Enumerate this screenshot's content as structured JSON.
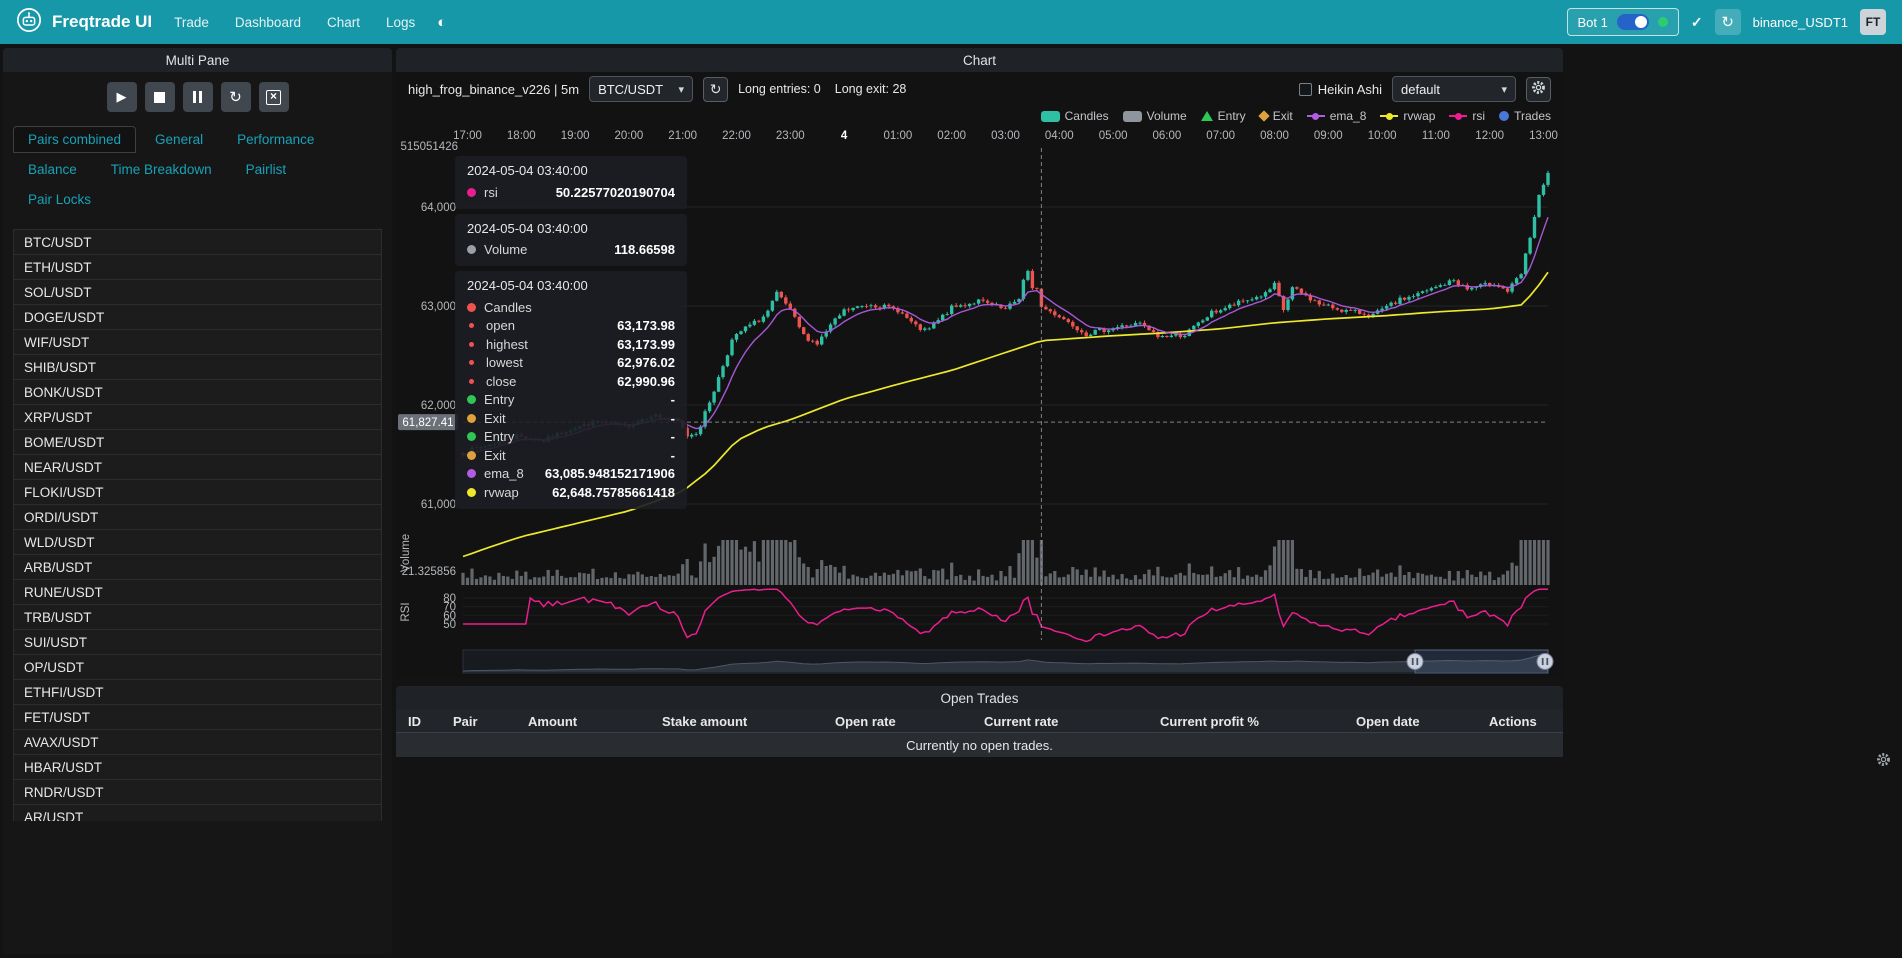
{
  "colors": {
    "navbar": "#1798a8",
    "accent": "#17a2b8",
    "candle_up": "#2fbfa4",
    "candle_down": "#ef5350",
    "volume": "#9aa0a6",
    "entry": "#2fc654",
    "exit": "#dfa23b",
    "ema_8": "#b05ce3",
    "rvwap": "#eee82c",
    "rsi": "#ea1e8e",
    "trades": "#4a78d8"
  },
  "navbar": {
    "brand": "Freqtrade UI",
    "links": [
      "Trade",
      "Dashboard",
      "Chart",
      "Logs"
    ],
    "theme_icon": "◐",
    "bot_name": "Bot 1",
    "check_icon": "✓",
    "reload_icon": "↻",
    "exchange_label": "binance_USDT1",
    "avatar_label": "FT"
  },
  "multi_pane": {
    "title": "Multi Pane",
    "control_icons": {
      "play": "▶",
      "reload": "↻",
      "cancel": "×"
    },
    "tabs": [
      {
        "label": "Pairs combined",
        "active": true
      },
      {
        "label": "General",
        "active": false
      },
      {
        "label": "Performance",
        "active": false
      },
      {
        "label": "Balance",
        "active": false
      },
      {
        "label": "Time Breakdown",
        "active": false
      },
      {
        "label": "Pairlist",
        "active": false
      },
      {
        "label": "Pair Locks",
        "active": false
      }
    ],
    "pairs": [
      "BTC/USDT",
      "ETH/USDT",
      "SOL/USDT",
      "DOGE/USDT",
      "WIF/USDT",
      "SHIB/USDT",
      "BONK/USDT",
      "XRP/USDT",
      "BOME/USDT",
      "NEAR/USDT",
      "FLOKI/USDT",
      "ORDI/USDT",
      "WLD/USDT",
      "ARB/USDT",
      "RUNE/USDT",
      "TRB/USDT",
      "SUI/USDT",
      "OP/USDT",
      "ETHFI/USDT",
      "FET/USDT",
      "AVAX/USDT",
      "HBAR/USDT",
      "RNDR/USDT",
      "AR/USDT"
    ]
  },
  "chart_panel": {
    "title": "Chart",
    "strategy_label": "high_frog_binance_v226 | 5m",
    "pair_select": "BTC/USDT",
    "entries_label": "Long entries: 0",
    "exits_label": "Long exit: 28",
    "heikin_ashi_label": "Heikin Ashi",
    "plot_config_select": "default",
    "legend": [
      {
        "label": "Candles",
        "type": "rect",
        "color": "#2fbfa4"
      },
      {
        "label": "Volume",
        "type": "rect",
        "color": "#8e959c"
      },
      {
        "label": "Entry",
        "type": "triangle",
        "color": "#2fc654"
      },
      {
        "label": "Exit",
        "type": "diamond",
        "color": "#dfa23b"
      },
      {
        "label": "ema_8",
        "type": "line",
        "color": "#b05ce3"
      },
      {
        "label": "rvwap",
        "type": "line",
        "color": "#eee82c"
      },
      {
        "label": "rsi",
        "type": "line",
        "color": "#ea1e8e"
      },
      {
        "label": "Trades",
        "type": "circle",
        "color": "#4a78d8"
      }
    ],
    "tooltip": {
      "sections": [
        {
          "time": "2024-05-04 03:40:00",
          "rows": [
            {
              "marker": "#ea1e8e",
              "label": "rsi",
              "value": "50.22577020190704"
            }
          ]
        },
        {
          "time": "2024-05-04 03:40:00",
          "rows": [
            {
              "marker": "#9aa0a6",
              "label": "Volume",
              "value": "118.66598"
            }
          ]
        },
        {
          "time": "2024-05-04 03:40:00",
          "rows": [
            {
              "marker": "#ef5350",
              "label": "Candles",
              "value": ""
            },
            {
              "marker": "#ef5350",
              "small": true,
              "label": "open",
              "value": "63,173.98"
            },
            {
              "marker": "#ef5350",
              "small": true,
              "label": "highest",
              "value": "63,173.99"
            },
            {
              "marker": "#ef5350",
              "small": true,
              "label": "lowest",
              "value": "62,976.02"
            },
            {
              "marker": "#ef5350",
              "small": true,
              "label": "close",
              "value": "62,990.96"
            },
            {
              "marker": "#2fc654",
              "label": "Entry",
              "value": "-"
            },
            {
              "marker": "#dfa23b",
              "label": "Exit",
              "value": "-"
            },
            {
              "marker": "#2fc654",
              "label": "Entry",
              "value": "-"
            },
            {
              "marker": "#dfa23b",
              "label": "Exit",
              "value": "-"
            },
            {
              "marker": "#b05ce3",
              "label": "ema_8",
              "value": "63,085.948152171906"
            },
            {
              "marker": "#eee82c",
              "label": "rvwap",
              "value": "62,648.75785661418"
            }
          ]
        }
      ]
    }
  },
  "chart_data": {
    "type": "candlestick",
    "pair": "BTC/USDT",
    "timeframe": "5m",
    "time_labels": [
      "17:00",
      "18:00",
      "19:00",
      "20:00",
      "21:00",
      "22:00",
      "23:00",
      "4",
      "01:00",
      "02:00",
      "03:00",
      "04:00",
      "05:00",
      "06:00",
      "07:00",
      "08:00",
      "09:00",
      "10:00",
      "11:00",
      "12:00",
      "13:00"
    ],
    "day_label_index": 7,
    "price_ticks": [
      [
        64000,
        "64,000"
      ],
      [
        63000,
        "63,000"
      ],
      [
        62000,
        "62,000"
      ],
      [
        61000,
        "61,000"
      ]
    ],
    "rsi_ticks": [
      "80",
      "70",
      "60",
      "50"
    ],
    "misc_axis_labels": {
      "top": "515051426",
      "volume": "21.325856"
    },
    "axis_titles": {
      "volume": "Volume",
      "rsi": "RSI"
    },
    "close_anchors": [
      [
        0,
        61520
      ],
      [
        30,
        61600
      ],
      [
        60,
        61690
      ],
      [
        90,
        61640
      ],
      [
        120,
        61760
      ],
      [
        150,
        61830
      ],
      [
        180,
        61780
      ],
      [
        210,
        61900
      ],
      [
        240,
        61830
      ],
      [
        250,
        61690
      ],
      [
        262,
        61730
      ],
      [
        280,
        62150
      ],
      [
        300,
        62650
      ],
      [
        312,
        62760
      ],
      [
        325,
        62830
      ],
      [
        338,
        62910
      ],
      [
        350,
        63120
      ],
      [
        362,
        63000
      ],
      [
        380,
        62700
      ],
      [
        395,
        62620
      ],
      [
        410,
        62800
      ],
      [
        425,
        62950
      ],
      [
        455,
        63020
      ],
      [
        485,
        62960
      ],
      [
        505,
        62790
      ],
      [
        517,
        62740
      ],
      [
        545,
        62980
      ],
      [
        575,
        63050
      ],
      [
        605,
        62960
      ],
      [
        622,
        63100
      ],
      [
        628,
        63420
      ],
      [
        634,
        63180
      ],
      [
        645,
        62990
      ],
      [
        665,
        62900
      ],
      [
        695,
        62720
      ],
      [
        725,
        62780
      ],
      [
        755,
        62820
      ],
      [
        775,
        62690
      ],
      [
        805,
        62710
      ],
      [
        835,
        62930
      ],
      [
        865,
        63030
      ],
      [
        895,
        63120
      ],
      [
        905,
        63210
      ],
      [
        915,
        62960
      ],
      [
        925,
        63180
      ],
      [
        955,
        63020
      ],
      [
        985,
        62950
      ],
      [
        1015,
        62910
      ],
      [
        1045,
        63060
      ],
      [
        1075,
        63150
      ],
      [
        1105,
        63260
      ],
      [
        1120,
        63170
      ],
      [
        1150,
        63230
      ],
      [
        1165,
        63150
      ],
      [
        1180,
        63320
      ],
      [
        1190,
        63700
      ],
      [
        1200,
        64100
      ],
      [
        1210,
        64330
      ]
    ],
    "rvwap_anchors": [
      [
        0,
        60470
      ],
      [
        35,
        60580
      ],
      [
        65,
        60670
      ],
      [
        125,
        60800
      ],
      [
        185,
        60930
      ],
      [
        245,
        61130
      ],
      [
        275,
        61340
      ],
      [
        305,
        61640
      ],
      [
        335,
        61770
      ],
      [
        365,
        61850
      ],
      [
        425,
        62060
      ],
      [
        485,
        62210
      ],
      [
        545,
        62350
      ],
      [
        605,
        62530
      ],
      [
        645,
        62649
      ],
      [
        725,
        62700
      ],
      [
        785,
        62730
      ],
      [
        845,
        62770
      ],
      [
        905,
        62830
      ],
      [
        965,
        62870
      ],
      [
        1025,
        62900
      ],
      [
        1085,
        62940
      ],
      [
        1145,
        62970
      ],
      [
        1180,
        63010
      ],
      [
        1195,
        63150
      ],
      [
        1210,
        63340
      ]
    ],
    "highlight_candle": {
      "m": 645,
      "open": 63173.98,
      "high": 63173.99,
      "low": 62976.02,
      "close": 62990.96,
      "rsi": 50.22577020190704,
      "volume": 118.66598,
      "ema_8": 63085.948152171906,
      "rvwap": 62648.75785661418
    },
    "crosshair": {
      "m": 645,
      "price": 61827.41,
      "price_label": "61,827.41"
    },
    "volume_spikes": [
      [
        290,
        372,
        2.8
      ],
      [
        616,
        642,
        3.2
      ],
      [
        898,
        932,
        1.9
      ],
      [
        1176,
        1212,
        3.8
      ]
    ]
  },
  "open_trades": {
    "title": "Open Trades",
    "columns": [
      "ID",
      "Pair",
      "Amount",
      "Stake amount",
      "Open rate",
      "Current rate",
      "Current profit %",
      "Open date",
      "Actions"
    ],
    "empty_message": "Currently no open trades."
  }
}
